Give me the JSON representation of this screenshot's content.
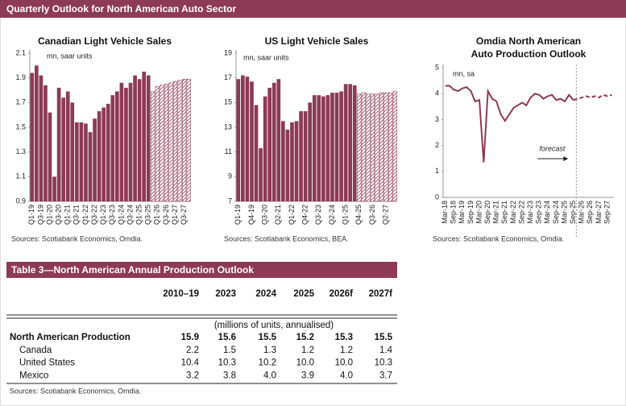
{
  "header": {
    "title": "Quarterly Outlook for North American Auto Sector",
    "color": "#8c3a55"
  },
  "chart_data": [
    {
      "type": "bar",
      "title": "Canadian Light Vehicle Sales",
      "y_unit_label": "mn, saar units",
      "categories": [
        "Q1-19",
        null,
        "Q3-19",
        null,
        "Q1-20",
        null,
        "Q3-20",
        null,
        "Q1-21",
        null,
        "Q3-21",
        null,
        "Q1-22",
        null,
        "Q3-22",
        null,
        "Q1-23",
        null,
        "Q3-23",
        null,
        "Q1-24",
        null,
        "Q3-24",
        null,
        "Q1-25",
        null,
        "Q3-25",
        null,
        "Q1-26",
        null,
        "Q3-26",
        null,
        "Q1-27",
        null,
        "Q3-27",
        null
      ],
      "series": [
        {
          "color": "#8c3a55",
          "values": [
            1.94,
            2.0,
            1.92,
            1.84,
            1.62,
            1.1,
            1.82,
            1.74,
            1.79,
            1.7,
            1.54,
            1.54,
            1.53,
            1.46,
            1.57,
            1.63,
            1.66,
            1.69,
            1.76,
            1.79,
            1.86,
            1.82,
            1.86,
            1.92,
            1.89,
            1.95,
            1.92,
            null,
            null,
            null,
            null,
            null,
            null,
            null,
            null,
            null
          ]
        },
        {
          "color": "#8c3a55",
          "pattern": "hatch",
          "values": [
            null,
            null,
            null,
            null,
            null,
            null,
            null,
            null,
            null,
            null,
            null,
            null,
            null,
            null,
            null,
            null,
            null,
            null,
            null,
            null,
            null,
            null,
            null,
            null,
            null,
            null,
            null,
            1.79,
            1.83,
            1.84,
            1.85,
            1.86,
            1.87,
            1.88,
            1.89,
            1.89
          ]
        }
      ],
      "ylim": [
        0.9,
        2.1
      ],
      "yticks": [
        0.9,
        1.1,
        1.3,
        1.5,
        1.7,
        1.9,
        2.1
      ],
      "grid": false,
      "source": "Sources: Scotiabank Economics, Omdia."
    },
    {
      "type": "bar",
      "title": "US Light Vehicle Sales",
      "y_unit_label": "mn, saar units",
      "categories": [
        "Q1-19",
        null,
        null,
        "Q4-19",
        null,
        null,
        "Q3-20",
        null,
        null,
        "Q2-21",
        null,
        null,
        "Q1-22",
        null,
        null,
        "Q4-22",
        null,
        null,
        "Q3-23",
        null,
        null,
        "Q2-24",
        null,
        null,
        "Q1-25",
        null,
        null,
        "Q4-25",
        null,
        null,
        "Q3-26",
        null,
        null,
        "Q2-27",
        null,
        null
      ],
      "series": [
        {
          "color": "#8c3a55",
          "values": [
            16.9,
            17.2,
            17.1,
            16.7,
            14.8,
            11.3,
            15.5,
            16.2,
            16.6,
            16.9,
            13.5,
            12.8,
            13.4,
            13.5,
            14.3,
            14.3,
            15.0,
            15.6,
            15.6,
            15.5,
            15.6,
            15.8,
            15.8,
            15.9,
            16.5,
            16.5,
            16.4,
            null,
            null,
            null,
            null,
            null,
            null,
            null,
            null,
            null
          ]
        },
        {
          "color": "#8c3a55",
          "pattern": "hatch",
          "values": [
            null,
            null,
            null,
            null,
            null,
            null,
            null,
            null,
            null,
            null,
            null,
            null,
            null,
            null,
            null,
            null,
            null,
            null,
            null,
            null,
            null,
            null,
            null,
            null,
            null,
            null,
            null,
            15.7,
            15.8,
            15.7,
            15.7,
            15.7,
            15.8,
            15.8,
            15.8,
            15.9
          ]
        }
      ],
      "ylim": [
        7,
        19
      ],
      "yticks": [
        7,
        9,
        11,
        13,
        15,
        17,
        19
      ],
      "grid": false,
      "source": "Sources: Scotiabank Economics, BEA."
    },
    {
      "type": "line",
      "title": [
        "Omdia North American",
        "Auto Production Outlook"
      ],
      "y_unit_label": "mn, sa",
      "categories": [
        "Mar-18",
        null,
        "Sep-18",
        null,
        "Mar-19",
        null,
        "Sep-19",
        null,
        "Mar-20",
        null,
        "Sep-20",
        null,
        "Mar-21",
        null,
        "Sep-21",
        null,
        "Mar-22",
        null,
        "Sep-22",
        null,
        "Mar-23",
        null,
        "Sep-23",
        null,
        "Mar-24",
        null,
        "Sep-24",
        null,
        "Mar-25",
        null,
        "Sep-25",
        null,
        "Mar-26",
        null,
        "Sep-26",
        null,
        "Mar-27",
        null,
        "Sep-27",
        null
      ],
      "series": [
        {
          "color": "#8c3a55",
          "values": [
            4.3,
            4.3,
            4.15,
            4.1,
            4.2,
            4.25,
            4.1,
            3.7,
            3.75,
            1.35,
            4.1,
            3.8,
            3.7,
            3.2,
            2.95,
            3.2,
            3.45,
            3.55,
            3.65,
            3.55,
            3.85,
            4.0,
            3.95,
            3.8,
            3.9,
            3.95,
            3.75,
            3.8,
            3.7,
            3.95,
            3.75,
            null,
            null,
            null,
            null,
            null,
            null,
            null,
            null,
            null
          ]
        },
        {
          "color": "#8c3a55",
          "dash": true,
          "values": [
            null,
            null,
            null,
            null,
            null,
            null,
            null,
            null,
            null,
            null,
            null,
            null,
            null,
            null,
            null,
            null,
            null,
            null,
            null,
            null,
            null,
            null,
            null,
            null,
            null,
            null,
            null,
            null,
            null,
            null,
            3.75,
            3.8,
            3.85,
            3.9,
            3.85,
            3.9,
            3.85,
            3.95,
            3.9,
            3.95
          ]
        }
      ],
      "ylim": [
        0,
        5
      ],
      "yticks": [
        0,
        1,
        2,
        3,
        4,
        5
      ],
      "grid": false,
      "annotation": "forecast",
      "source": "Sources: Scotiabank Economics, Omdia."
    }
  ],
  "table": {
    "title": "Table 3—North American Annual Production Outlook",
    "columns": [
      "2010–19",
      "2023",
      "2024",
      "2025",
      "2026f",
      "2027f"
    ],
    "unit_note": "(millions of units, annualised)",
    "rows": [
      [
        "North American Production",
        "15.9",
        "15.6",
        "15.5",
        "15.2",
        "15.3",
        "15.5"
      ],
      [
        "Canada",
        "2.2",
        "1.5",
        "1.3",
        "1.2",
        "1.2",
        "1.4"
      ],
      [
        "United States",
        "10.4",
        "10.3",
        "10.2",
        "10.0",
        "10.0",
        "10.3"
      ],
      [
        "Mexico",
        "3.2",
        "3.8",
        "4.0",
        "3.9",
        "4.0",
        "3.7"
      ]
    ],
    "source": "Sources: Scotiabank Economics, Omdia."
  }
}
